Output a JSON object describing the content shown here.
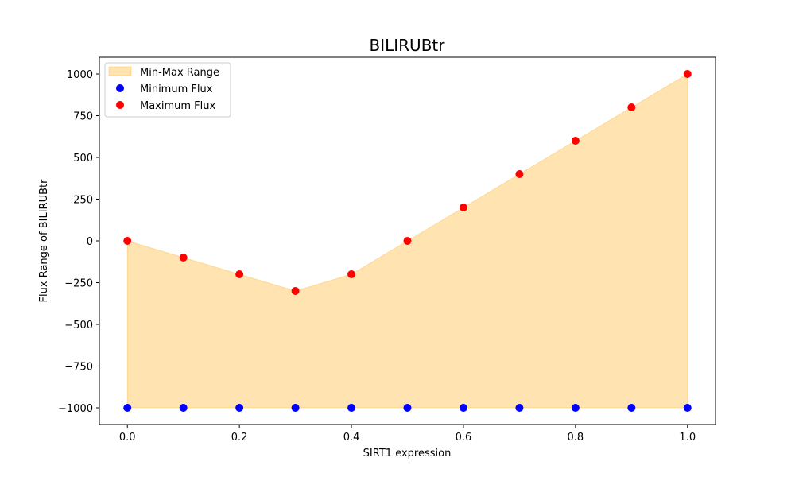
{
  "chart_data": {
    "type": "scatter",
    "title": "BILIRUBtr",
    "xlabel": "SIRT1 expression",
    "ylabel": "Flux Range of BILIRUBtr",
    "x": [
      0.0,
      0.1,
      0.2,
      0.3,
      0.4,
      0.5,
      0.6,
      0.7,
      0.8,
      0.9,
      1.0
    ],
    "series": [
      {
        "name": "Minimum Flux",
        "color": "#0000ff",
        "values": [
          -1000,
          -1000,
          -1000,
          -1000,
          -1000,
          -1000,
          -1000,
          -1000,
          -1000,
          -1000,
          -1000
        ]
      },
      {
        "name": "Maximum Flux",
        "color": "#ff0000",
        "values": [
          0,
          -100,
          -200,
          -300,
          -200,
          0,
          200,
          400,
          600,
          800,
          1000
        ]
      }
    ],
    "fill": {
      "name": "Min-Max Range",
      "color": "#ffa500",
      "opacity": 0.3
    },
    "xlim": [
      -0.05,
      1.05
    ],
    "ylim": [
      -1100,
      1100
    ],
    "xticks": [
      0.0,
      0.2,
      0.4,
      0.6,
      0.8,
      1.0
    ],
    "xtick_labels": [
      "0.0",
      "0.2",
      "0.4",
      "0.6",
      "0.8",
      "1.0"
    ],
    "yticks": [
      -1000,
      -750,
      -500,
      -250,
      0,
      250,
      500,
      750,
      1000
    ],
    "ytick_labels": [
      "−1000",
      "−750",
      "−500",
      "−250",
      "0",
      "250",
      "500",
      "750",
      "1000"
    ],
    "grid": false,
    "legend_position": "top-left"
  }
}
